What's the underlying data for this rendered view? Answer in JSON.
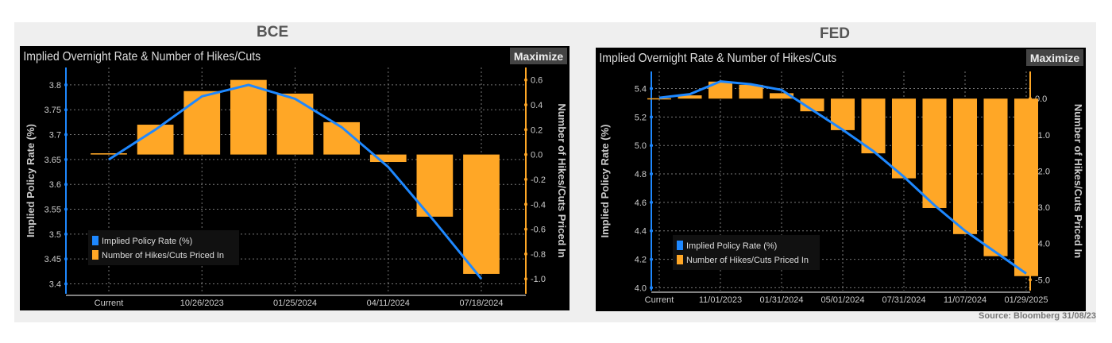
{
  "panels": [
    {
      "heading": "BCE"
    },
    {
      "heading": "FED"
    }
  ],
  "source": "Source: Bloomberg 31/08/23",
  "colors": {
    "line": "#1e88ff",
    "bar": "#ffa726",
    "background": "#000000",
    "grid": "#777777",
    "text": "#dddddd"
  },
  "chart_data": [
    {
      "type": "bar+line",
      "title": "Implied Overnight Rate & Number of Hikes/Cuts",
      "button": "Maximize",
      "ylabel": "Implied Policy Rate (%)",
      "y2label": "Number of Hikes/Cuts Priced In",
      "categories": [
        "Current",
        "",
        "10/26/2023",
        "",
        "01/25/2024",
        "",
        "04/11/2024",
        "",
        "07/18/2024"
      ],
      "yticks": [
        "3.4",
        "3.45",
        "3.5",
        "3.55",
        "3.6",
        "3.65",
        "3.7",
        "3.75",
        "3.8"
      ],
      "y2ticks": [
        "-1.0",
        "-0.8",
        "-0.6",
        "-0.4",
        "-0.2",
        "0.0",
        "0.2",
        "0.4",
        "0.6"
      ],
      "ylim": [
        3.38,
        3.835
      ],
      "y2lim": [
        -1.12,
        0.7
      ],
      "grid": true,
      "legend_position": "bottom-left",
      "series": [
        {
          "name": "Implied Policy Rate (%)",
          "type": "line",
          "axis": "left",
          "values": [
            3.65,
            3.71,
            3.777,
            3.8,
            3.772,
            3.715,
            3.635,
            3.525,
            3.41
          ]
        },
        {
          "name": "Number of Hikes/Cuts Priced In",
          "type": "bar",
          "axis": "right",
          "values": [
            0.01,
            0.24,
            0.51,
            0.6,
            0.49,
            0.26,
            -0.06,
            -0.5,
            -0.96
          ]
        }
      ]
    },
    {
      "type": "bar+line",
      "title": "Implied Overnight Rate & Number of Hikes/Cuts",
      "button": "Maximize",
      "ylabel": "Implied Policy Rate (%)",
      "y2label": "Number of Hikes/Cuts Priced In",
      "categories": [
        "Current",
        "",
        "11/01/2023",
        "",
        "01/31/2024",
        "",
        "05/01/2024",
        "",
        "07/31/2024",
        "",
        "11/07/2024",
        "",
        "01/29/2025"
      ],
      "yticks": [
        "4.0",
        "4.2",
        "4.4",
        "4.6",
        "4.8",
        "5.0",
        "5.2",
        "5.4"
      ],
      "y2ticks": [
        "-5.0",
        "-4.0",
        "-3.0",
        "-2.0",
        "-1.0",
        "0.0"
      ],
      "ylim": [
        3.98,
        5.52
      ],
      "y2lim": [
        -5.3,
        0.75
      ],
      "grid": true,
      "legend_position": "bottom-left",
      "series": [
        {
          "name": "Implied Policy Rate (%)",
          "type": "line",
          "axis": "left",
          "values": [
            5.335,
            5.36,
            5.45,
            5.43,
            5.39,
            5.25,
            5.11,
            4.96,
            4.78,
            4.58,
            4.4,
            4.25,
            4.1
          ]
        },
        {
          "name": "Number of Hikes/Cuts Priced In",
          "type": "bar",
          "axis": "right",
          "values": [
            0.01,
            0.09,
            0.47,
            0.38,
            0.15,
            -0.35,
            -0.87,
            -1.51,
            -2.2,
            -3.02,
            -3.74,
            -4.35,
            -4.9
          ]
        }
      ]
    }
  ]
}
